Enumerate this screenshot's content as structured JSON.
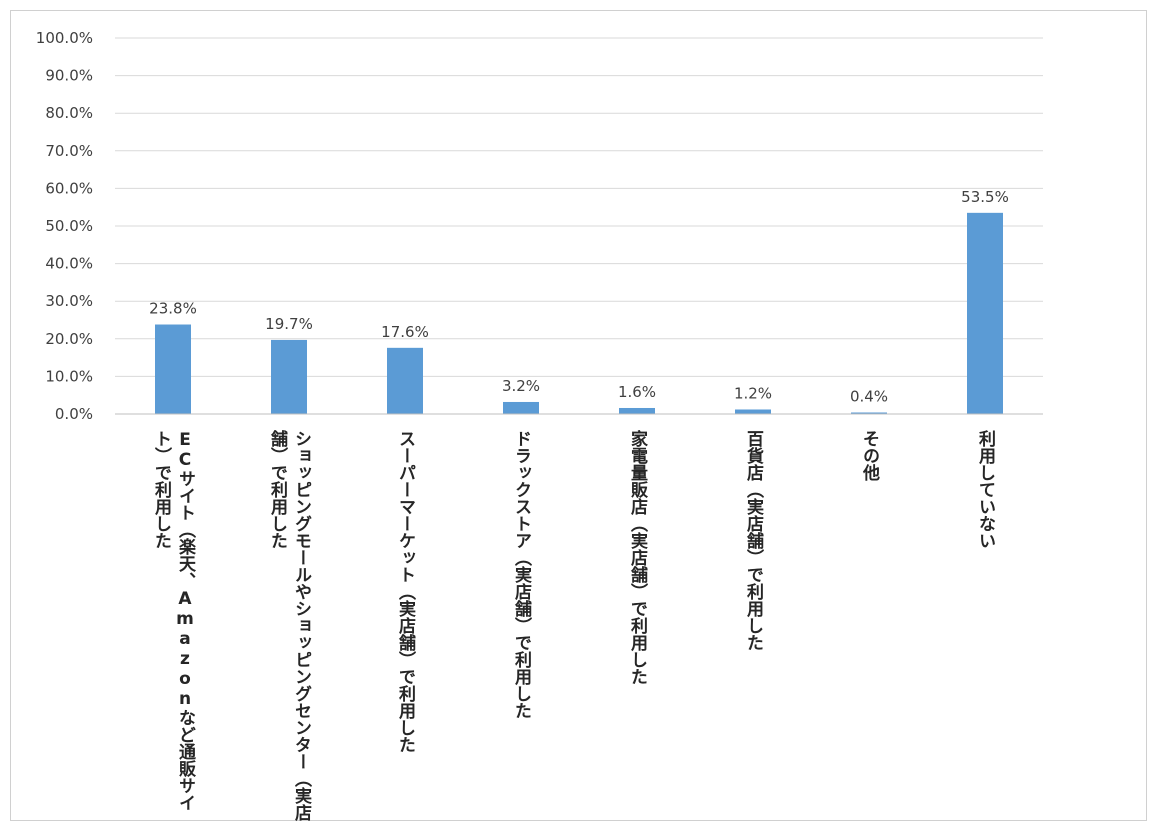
{
  "chart_data": {
    "type": "bar",
    "categories": [
      "ECサイト（楽天、Amazonなど通販サイト）で利用した",
      "ショッピングモールやショッピングセンター（実店舗）で利用した",
      "スーパーマーケット（実店舗）で利用した",
      "ドラックストア（実店舗）で利用した",
      "家電量販店（実店舗）で利用した",
      "百貨店（実店舗）で利用した",
      "その他",
      "利用していない"
    ],
    "values": [
      23.8,
      19.7,
      17.6,
      3.2,
      1.6,
      1.2,
      0.4,
      53.5
    ],
    "data_labels": [
      "23.8%",
      "19.7%",
      "17.6%",
      "3.2%",
      "1.6%",
      "1.2%",
      "0.4%",
      "53.5%"
    ],
    "y_ticks": [
      "0.0%",
      "10.0%",
      "20.0%",
      "30.0%",
      "40.0%",
      "50.0%",
      "60.0%",
      "70.0%",
      "80.0%",
      "90.0%",
      "100.0%"
    ],
    "ylim": [
      0,
      100
    ],
    "grid": true,
    "legend": "none",
    "bar_color": "#5b9bd5",
    "title": "",
    "xlabel": "",
    "ylabel": ""
  }
}
